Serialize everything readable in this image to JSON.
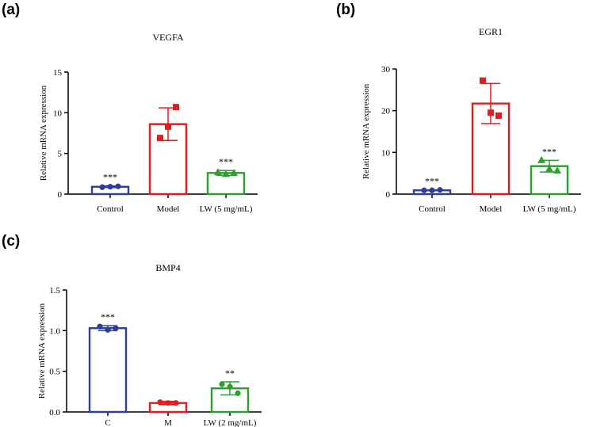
{
  "panels": [
    "(a)",
    "(b)",
    "(c)"
  ],
  "chart_data": [
    {
      "type": "bar",
      "title": "VEGFA",
      "ylabel": "Relative mRNA expression",
      "xlabel": "",
      "ylim": [
        0,
        15
      ],
      "yticks": [
        0,
        5,
        10,
        15
      ],
      "ytick_labels": [
        "0",
        "5",
        "10",
        "15"
      ],
      "categories": [
        "Control",
        "Model",
        "LW (5 mg/mL)"
      ],
      "values": [
        0.9,
        8.6,
        2.6
      ],
      "error": [
        0.1,
        2.0,
        0.3
      ],
      "points": [
        [
          0.85,
          0.9,
          0.95
        ],
        [
          6.9,
          8.3,
          10.7
        ],
        [
          2.7,
          2.5,
          2.6
        ]
      ],
      "markers": [
        "circle",
        "square",
        "triangle"
      ],
      "colors": [
        "#2b3d9e",
        "#e41a1c",
        "#2ca02c"
      ],
      "significance": [
        "***",
        "",
        "***"
      ]
    },
    {
      "type": "bar",
      "title": "EGR1",
      "ylabel": "Relative mRNA expression",
      "xlabel": "",
      "ylim": [
        0,
        30
      ],
      "yticks": [
        0,
        10,
        20,
        30
      ],
      "ytick_labels": [
        "0",
        "10",
        "20",
        "30"
      ],
      "categories": [
        "Control",
        "Model",
        "LW (5 mg/mL)"
      ],
      "values": [
        0.9,
        21.7,
        6.7
      ],
      "error": [
        0.1,
        4.8,
        1.4
      ],
      "points": [
        [
          0.9,
          0.9,
          1.0
        ],
        [
          27.2,
          19.5,
          18.8
        ],
        [
          8.2,
          6.1,
          5.7
        ]
      ],
      "markers": [
        "circle",
        "square",
        "triangle"
      ],
      "colors": [
        "#2b3d9e",
        "#e41a1c",
        "#2ca02c"
      ],
      "significance": [
        "***",
        "",
        "***"
      ]
    },
    {
      "type": "bar",
      "title": "BMP4",
      "ylabel": "Relative mRNA expression",
      "xlabel": "",
      "ylim": [
        0,
        1.5
      ],
      "yticks": [
        0,
        0.5,
        1.0,
        1.5
      ],
      "ytick_labels": [
        "0.0",
        "0.5",
        "1.0",
        "1.5"
      ],
      "categories": [
        "C",
        "M",
        "LW (2 mg/mL)"
      ],
      "values": [
        1.03,
        0.11,
        0.29
      ],
      "error": [
        0.03,
        0.02,
        0.08
      ],
      "points": [
        [
          1.05,
          1.01,
          1.03
        ],
        [
          0.12,
          0.11,
          0.11
        ],
        [
          0.34,
          0.31,
          0.23
        ]
      ],
      "markers": [
        "circle",
        "circle",
        "circle"
      ],
      "colors": [
        "#2b3d9e",
        "#e41a1c",
        "#2ca02c"
      ],
      "significance": [
        "***",
        "",
        "**"
      ]
    }
  ]
}
